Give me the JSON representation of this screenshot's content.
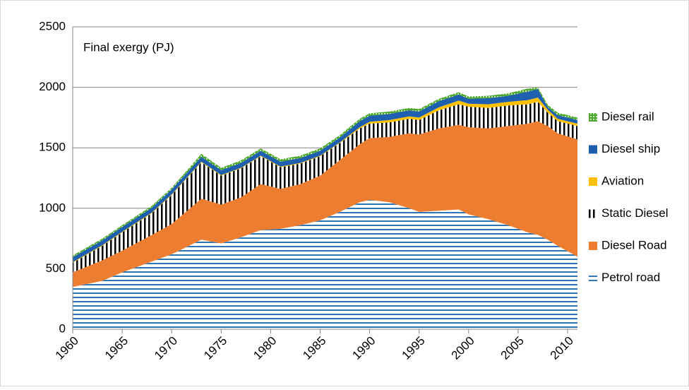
{
  "chart_data": {
    "type": "stacked-area",
    "annotation": "Final  exergy (PJ)",
    "x": [
      1960,
      1963,
      1965,
      1968,
      1970,
      1972,
      1973,
      1975,
      1977,
      1979,
      1981,
      1983,
      1985,
      1987,
      1989,
      1990,
      1992,
      1994,
      1995,
      1997,
      1999,
      2000,
      2002,
      2004,
      2006,
      2007,
      2008,
      2009,
      2011
    ],
    "xlim": [
      1960,
      2011
    ],
    "xticks": [
      1960,
      1965,
      1970,
      1975,
      1980,
      1985,
      1990,
      1995,
      2000,
      2005,
      2010
    ],
    "ylim": [
      0,
      2500
    ],
    "yticks": [
      0,
      500,
      1000,
      1500,
      2000,
      2500
    ],
    "grid": true,
    "legend": "right",
    "series": [
      {
        "name": "Petrol road",
        "color": "#2e75b6",
        "pattern": "hlines",
        "values": [
          350,
          400,
          470,
          560,
          620,
          700,
          740,
          710,
          760,
          820,
          830,
          860,
          900,
          970,
          1050,
          1070,
          1050,
          1000,
          970,
          980,
          990,
          950,
          910,
          860,
          800,
          780,
          740,
          690,
          600
        ]
      },
      {
        "name": "Diesel Road",
        "color": "#ed7d31",
        "pattern": "solid",
        "values": [
          120,
          170,
          180,
          220,
          250,
          310,
          340,
          320,
          330,
          380,
          330,
          340,
          370,
          430,
          480,
          510,
          540,
          620,
          640,
          680,
          700,
          720,
          750,
          820,
          900,
          940,
          940,
          930,
          970
        ]
      },
      {
        "name": "Static Diesel",
        "color": "#000000",
        "pattern": "vlines",
        "values": [
          80,
          120,
          150,
          180,
          240,
          280,
          300,
          240,
          240,
          230,
          180,
          170,
          160,
          140,
          130,
          120,
          120,
          120,
          120,
          150,
          170,
          170,
          170,
          170,
          160,
          160,
          110,
          100,
          110
        ]
      },
      {
        "name": "Aviation",
        "color": "#ffc000",
        "pattern": "solid",
        "values": [
          5,
          5,
          5,
          5,
          5,
          5,
          5,
          5,
          5,
          5,
          5,
          5,
          5,
          5,
          10,
          15,
          20,
          20,
          20,
          25,
          30,
          25,
          30,
          30,
          35,
          35,
          25,
          20,
          20
        ]
      },
      {
        "name": "Diesel ship",
        "color": "#1f5fb0",
        "pattern": "solid",
        "values": [
          40,
          40,
          40,
          40,
          40,
          40,
          40,
          40,
          40,
          40,
          40,
          40,
          40,
          40,
          50,
          50,
          50,
          50,
          50,
          50,
          50,
          40,
          50,
          50,
          70,
          70,
          20,
          30,
          30
        ]
      },
      {
        "name": "Diesel rail",
        "color": "#4ea72e",
        "pattern": "dots",
        "values": [
          15,
          15,
          15,
          15,
          15,
          20,
          25,
          20,
          20,
          20,
          20,
          20,
          20,
          20,
          20,
          20,
          20,
          20,
          20,
          20,
          20,
          20,
          20,
          20,
          25,
          15,
          20,
          20,
          20
        ]
      }
    ]
  }
}
